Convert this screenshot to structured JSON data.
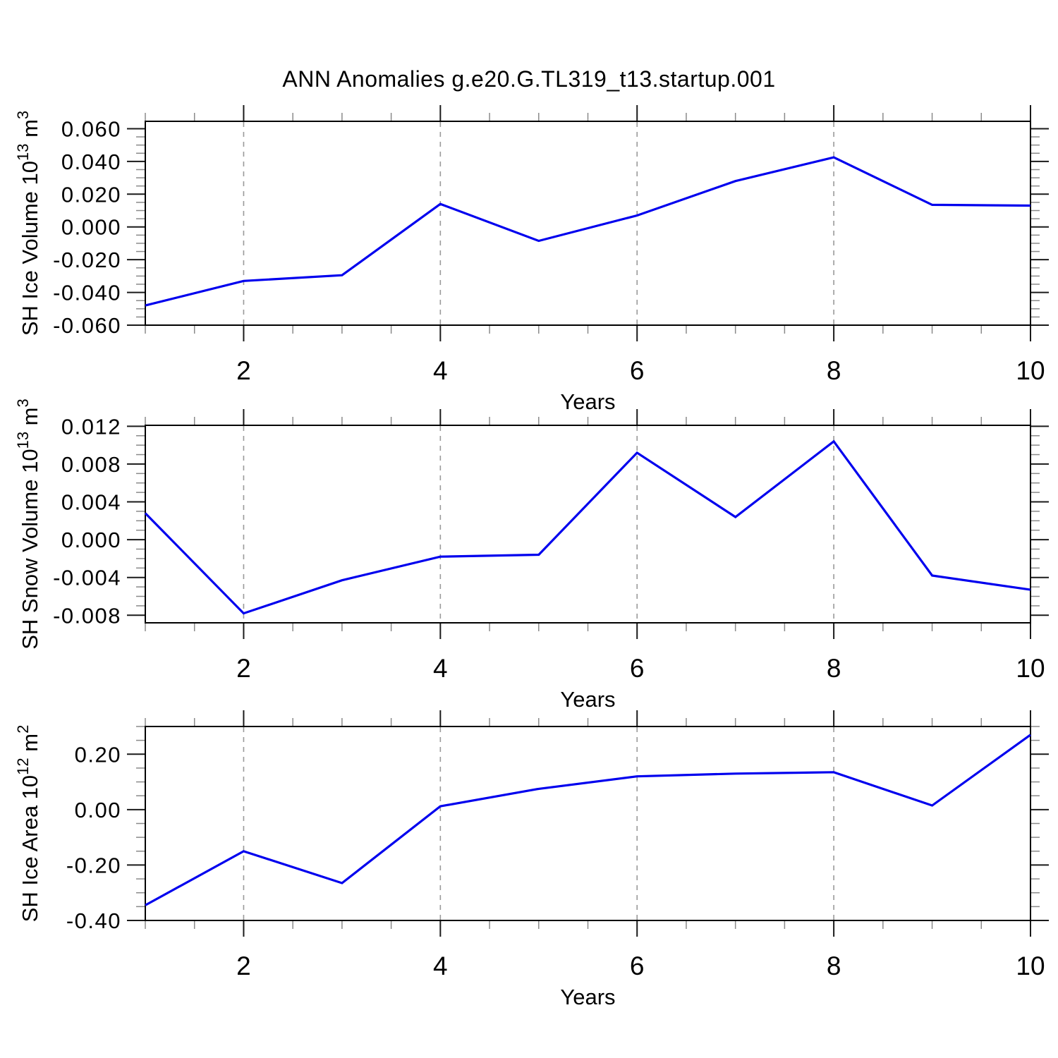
{
  "title": "ANN Anomalies g.e20.G.TL319_t13.startup.001",
  "colors": {
    "line": "#0000ee",
    "axis": "#000000",
    "major_tick": "#1a1a1a",
    "minor_tick": "#8a8a8a",
    "grid": "#9a9a9a",
    "background": "#ffffff"
  },
  "chart_data": [
    {
      "type": "line",
      "ylabel": "SH Ice Volume 10^13 m^3",
      "ylabel_parts": [
        {
          "t": "SH Ice Volume 10",
          "sup": false
        },
        {
          "t": "13",
          "sup": true
        },
        {
          "t": " m",
          "sup": false
        },
        {
          "t": "3",
          "sup": true
        }
      ],
      "xlabel": "Years",
      "x": [
        1,
        2,
        3,
        4,
        5,
        6,
        7,
        8,
        9,
        10
      ],
      "values": [
        -0.048,
        -0.033,
        -0.0295,
        0.014,
        -0.0085,
        0.007,
        0.028,
        0.0425,
        0.0135,
        0.013
      ],
      "xlim": [
        1,
        10
      ],
      "ylim": [
        -0.06,
        0.0645
      ],
      "yticks": [
        0.06,
        0.04,
        0.02,
        0,
        -0.02,
        -0.04,
        -0.06
      ],
      "ytick_labels": [
        "0.060",
        "0.040",
        "0.020",
        "0.000",
        "-0.020",
        "-0.040",
        "-0.060"
      ],
      "y_minor_step": 0.005,
      "xticks": [
        2,
        4,
        6,
        8,
        10
      ],
      "xtick_labels": [
        "2",
        "4",
        "6",
        "8",
        "10"
      ],
      "x_minor_step": 0.5,
      "grid_x": [
        2,
        4,
        6,
        8
      ],
      "grid": "vertical-dashed",
      "legend": "none"
    },
    {
      "type": "line",
      "ylabel": "SH Snow Volume 10^13 m^3",
      "ylabel_parts": [
        {
          "t": "SH Snow Volume 10",
          "sup": false
        },
        {
          "t": "13",
          "sup": true
        },
        {
          "t": " m",
          "sup": false
        },
        {
          "t": "3",
          "sup": true
        }
      ],
      "xlabel": "Years",
      "x": [
        1,
        2,
        3,
        4,
        5,
        6,
        7,
        8,
        9,
        10
      ],
      "values": [
        0.0028,
        -0.0078,
        -0.0043,
        -0.0018,
        -0.0016,
        0.0092,
        0.0024,
        0.0104,
        -0.0038,
        -0.0053
      ],
      "xlim": [
        1,
        10
      ],
      "ylim": [
        -0.0088,
        0.0121
      ],
      "yticks": [
        0.012,
        0.008,
        0.004,
        0,
        -0.004,
        -0.008
      ],
      "ytick_labels": [
        "0.012",
        "0.008",
        "0.004",
        "0.000",
        "-0.004",
        "-0.008"
      ],
      "y_minor_step": 0.001,
      "xticks": [
        2,
        4,
        6,
        8,
        10
      ],
      "xtick_labels": [
        "2",
        "4",
        "6",
        "8",
        "10"
      ],
      "x_minor_step": 0.5,
      "grid_x": [
        2,
        4,
        6,
        8
      ],
      "grid": "vertical-dashed",
      "legend": "none"
    },
    {
      "type": "line",
      "ylabel": "SH Ice Area 10^12 m^2",
      "ylabel_parts": [
        {
          "t": "SH Ice Area 10",
          "sup": false
        },
        {
          "t": "12",
          "sup": true
        },
        {
          "t": " m",
          "sup": false
        },
        {
          "t": "2",
          "sup": true
        }
      ],
      "xlabel": "Years",
      "x": [
        1,
        2,
        3,
        4,
        5,
        6,
        7,
        8,
        9,
        10
      ],
      "values": [
        -0.345,
        -0.15,
        -0.265,
        0.012,
        0.075,
        0.12,
        0.13,
        0.135,
        0.015,
        0.27
      ],
      "xlim": [
        1,
        10
      ],
      "ylim": [
        -0.4,
        0.3
      ],
      "yticks": [
        0.2,
        0,
        -0.2,
        -0.4
      ],
      "ytick_labels": [
        "0.20",
        "0.00",
        "-0.20",
        "-0.40"
      ],
      "y_minor_step": 0.05,
      "xticks": [
        2,
        4,
        6,
        8,
        10
      ],
      "xtick_labels": [
        "2",
        "4",
        "6",
        "8",
        "10"
      ],
      "x_minor_step": 0.5,
      "grid_x": [
        2,
        4,
        6,
        8
      ],
      "grid": "vertical-dashed",
      "legend": "none"
    }
  ]
}
